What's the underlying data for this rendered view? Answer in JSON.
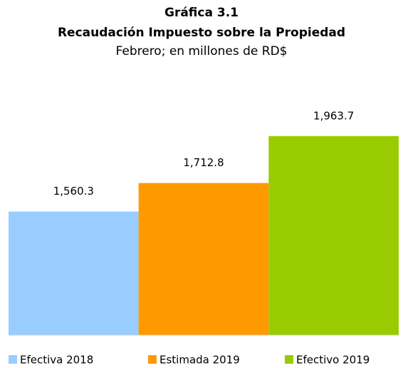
{
  "chart_data": {
    "type": "bar",
    "title": "Gráfica 3.1",
    "subtitle": "Recaudación Impuesto sobre la Propiedad",
    "units": "Febrero; en millones de RD$",
    "series": [
      {
        "name": "Efectiva 2018",
        "color": "#99ccff",
        "values": [
          1560.3
        ],
        "value_labels": [
          "1,560.3"
        ]
      },
      {
        "name": "Estimada 2019",
        "color": "#ff9900",
        "values": [
          1712.8
        ],
        "value_labels": [
          "1,712.8"
        ]
      },
      {
        "name": "Efectivo 2019",
        "color": "#99cc00",
        "values": [
          1963.7
        ],
        "value_labels": [
          "1,963.7"
        ]
      }
    ],
    "ylim": [
      900,
      2100
    ],
    "legend": "bottom"
  }
}
